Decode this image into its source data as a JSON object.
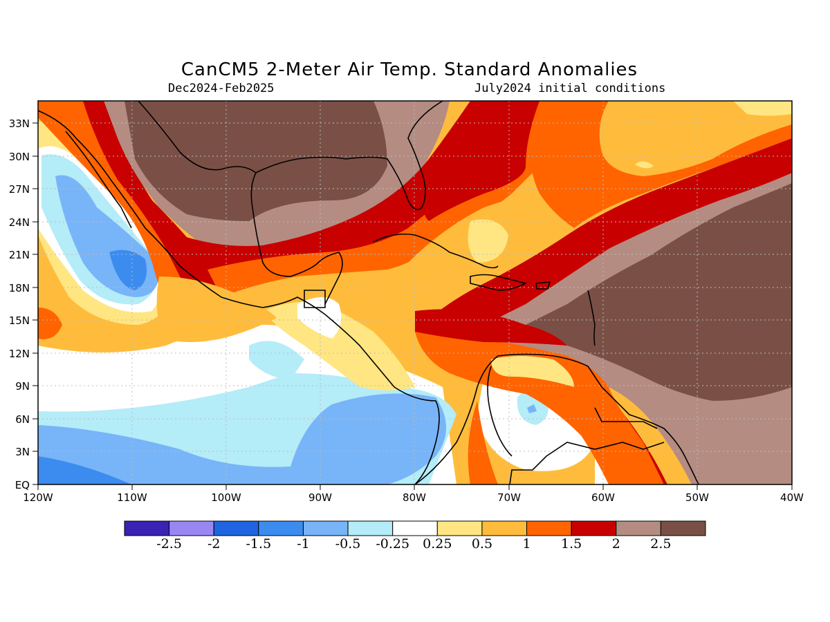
{
  "title": "CanCM5 2-Meter Air Temp. Standard Anomalies",
  "subtitle_left": "Dec2024-Feb2025",
  "subtitle_right": "July2024 initial conditions",
  "axes": {
    "lat_labels": [
      "33N",
      "30N",
      "27N",
      "24N",
      "21N",
      "18N",
      "15N",
      "12N",
      "9N",
      "6N",
      "3N",
      "EQ"
    ],
    "lon_labels": [
      "120W",
      "110W",
      "100W",
      "90W",
      "80W",
      "70W",
      "60W",
      "50W",
      "40W"
    ]
  },
  "colorbar": {
    "labels": [
      "-2.5",
      "-2",
      "-1.5",
      "-1",
      "-0.5",
      "-0.25",
      "0.25",
      "0.5",
      "1",
      "1.5",
      "2",
      "2.5"
    ],
    "colors": [
      "#3a22b4",
      "#9a86f2",
      "#1f64e0",
      "#3c8cf0",
      "#78b4f8",
      "#b4ecf8",
      "#ffffff",
      "#ffe682",
      "#ffbc3c",
      "#ff6400",
      "#c80000",
      "#b48c82",
      "#7a5046"
    ]
  },
  "chart_data": {
    "type": "heatmap",
    "variable": "2-Meter Air Temp. Standard Anomalies",
    "lon_range": [
      -120,
      -40
    ],
    "lat_range": [
      0,
      35
    ],
    "levels": [
      -2.5,
      -2,
      -1.5,
      -1,
      -0.5,
      -0.25,
      0.25,
      0.5,
      1,
      1.5,
      2,
      2.5
    ]
  }
}
